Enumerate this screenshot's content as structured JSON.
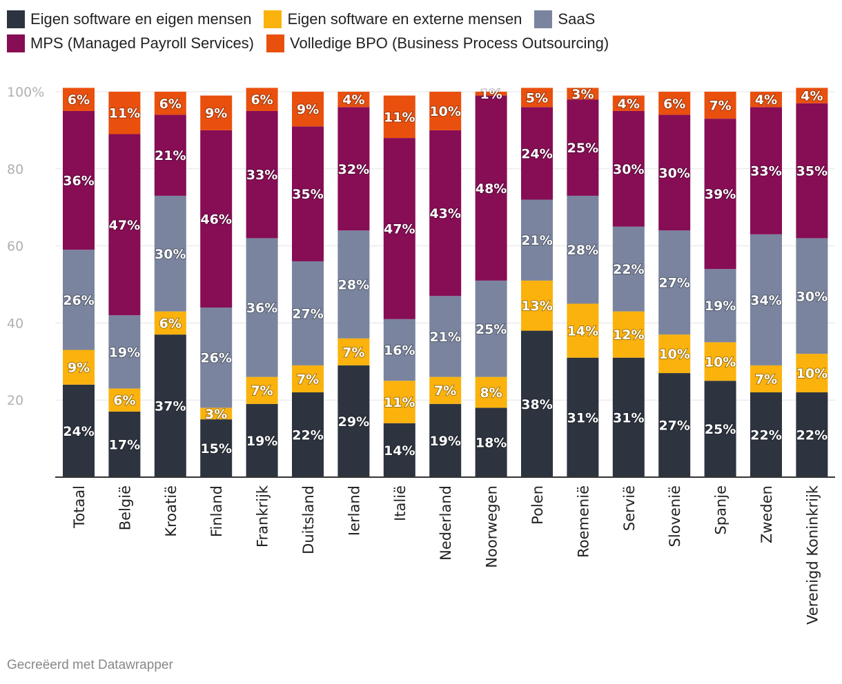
{
  "chart_data": {
    "type": "bar",
    "stacked": true,
    "title": "",
    "xlabel": "",
    "ylabel": "",
    "ylim": [
      0,
      100
    ],
    "yticks": [
      20,
      40,
      60,
      80,
      100
    ],
    "ytick_labels": [
      "20",
      "40",
      "60",
      "80",
      "100%"
    ],
    "categories": [
      "Totaal",
      "België",
      "Kroatië",
      "Finland",
      "Frankrijk",
      "Duitsland",
      "Ierland",
      "Italië",
      "Nederland",
      "Noorwegen",
      "Polen",
      "Roemenië",
      "Servië",
      "Slovenië",
      "Spanje",
      "Zweden",
      "Verenigd Koninkrijk"
    ],
    "series": [
      {
        "name": "Eigen software en eigen mensen",
        "color": "#2d3440",
        "values": [
          24,
          17,
          37,
          15,
          19,
          22,
          29,
          14,
          19,
          18,
          38,
          31,
          31,
          27,
          25,
          22,
          22
        ]
      },
      {
        "name": "Eigen software en externe mensen",
        "color": "#fbb20d",
        "values": [
          9,
          6,
          6,
          3,
          7,
          7,
          7,
          11,
          7,
          8,
          13,
          14,
          12,
          10,
          10,
          7,
          10
        ]
      },
      {
        "name": "SaaS",
        "color": "#7a849e",
        "values": [
          26,
          19,
          30,
          26,
          36,
          27,
          28,
          16,
          21,
          25,
          21,
          28,
          22,
          27,
          19,
          34,
          30
        ]
      },
      {
        "name": "MPS (Managed Payroll Services)",
        "color": "#870d55",
        "values": [
          36,
          47,
          21,
          46,
          33,
          35,
          32,
          47,
          43,
          48,
          24,
          25,
          30,
          30,
          39,
          33,
          35
        ]
      },
      {
        "name": "Volledige BPO (Business Process Outsourcing)",
        "color": "#e9500e",
        "values": [
          6,
          11,
          6,
          9,
          6,
          9,
          4,
          11,
          10,
          1,
          5,
          3,
          4,
          6,
          7,
          4,
          4
        ]
      }
    ],
    "value_suffix": "%",
    "grid": true,
    "legend_position": "top"
  },
  "footer": {
    "credit": "Gecreëerd met Datawrapper"
  }
}
